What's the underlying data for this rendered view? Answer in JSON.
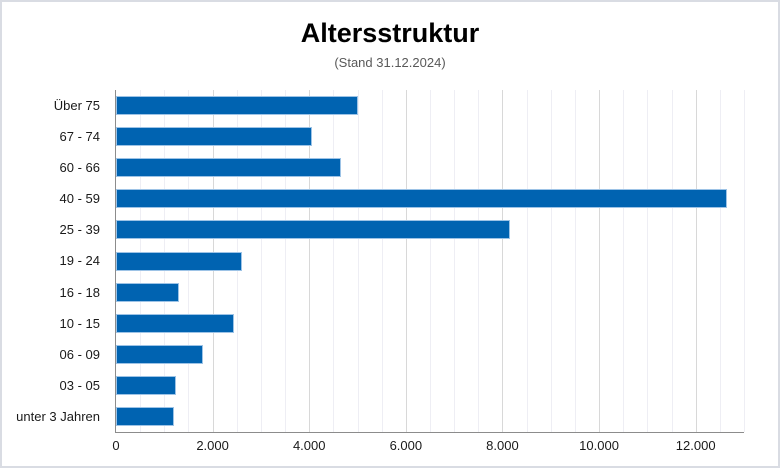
{
  "header": {
    "title": "Altersstruktur",
    "subtitle": "(Stand 31.12.2024)"
  },
  "colors": {
    "bar_fill": "#0063B1",
    "bar_border": "#9DC3E6",
    "gridline_minor": "#EEEEF4",
    "gridline_major": "#D8D8D8",
    "axis_line": "#8C8C8C",
    "subtitle_text": "#595959",
    "label_text": "#1A1A1A",
    "frame_border": "#D9DCE3"
  },
  "chart_data": {
    "type": "bar",
    "orientation": "horizontal",
    "title": "Altersstruktur",
    "subtitle": "(Stand 31.12.2024)",
    "categories": [
      "Über 75",
      "67 - 74",
      "60 - 66",
      "40 - 59",
      "25 - 39",
      "19 - 24",
      "16 - 18",
      "10 - 15",
      "06 - 09",
      "03 - 05",
      "unter 3 Jahren"
    ],
    "values": [
      5000,
      4050,
      4650,
      12650,
      8150,
      2600,
      1300,
      2450,
      1800,
      1250,
      1200
    ],
    "xlabel": "",
    "ylabel": "",
    "xlim": [
      0,
      13000
    ],
    "x_major_unit": 2000,
    "x_minor_unit": 500,
    "x_tick_labels": [
      "0",
      "2.000",
      "4.000",
      "6.000",
      "8.000",
      "10.000",
      "12.000"
    ],
    "grid": true,
    "legend": false,
    "bar_color": "#0063B1"
  }
}
